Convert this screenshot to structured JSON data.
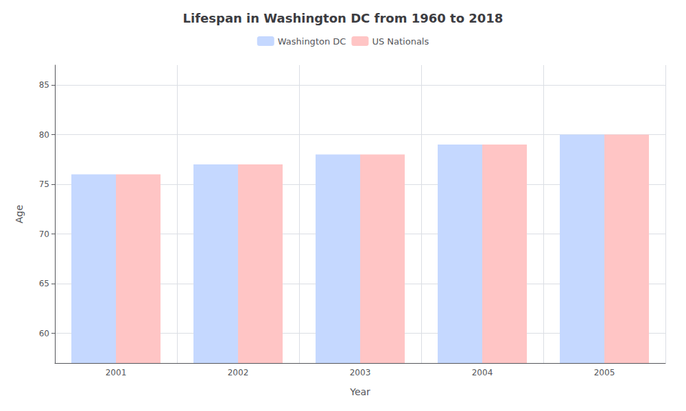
{
  "chart_data": {
    "type": "bar",
    "title": "Lifespan in Washington DC from 1960 to 2018",
    "xlabel": "Year",
    "ylabel": "Age",
    "categories": [
      "2001",
      "2002",
      "2003",
      "2004",
      "2005"
    ],
    "series": [
      {
        "name": "Washington DC",
        "color": "#c5d8ff",
        "values": [
          76,
          77,
          78,
          79,
          80
        ]
      },
      {
        "name": "US Nationals",
        "color": "#ffc5c5",
        "values": [
          76,
          77,
          78,
          79,
          80
        ]
      }
    ],
    "ylim": [
      57,
      87
    ],
    "yticks": [
      60,
      65,
      70,
      75,
      80,
      85
    ],
    "grid": true,
    "legend": "top"
  }
}
